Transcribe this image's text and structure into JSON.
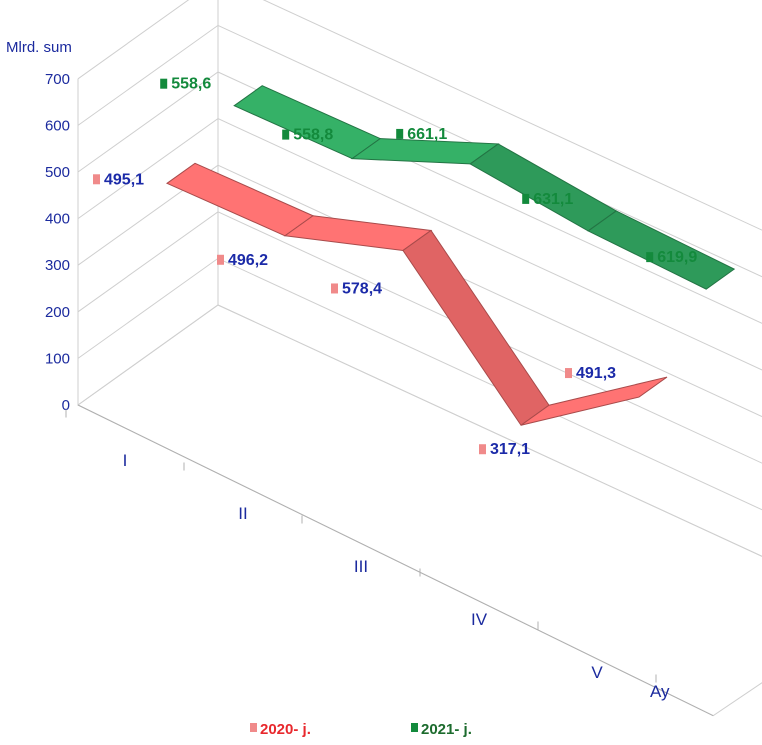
{
  "chart_data": {
    "type": "line",
    "style": "3d-ribbon",
    "ylabel": "Mlrd. sum",
    "xlabel": "Ay",
    "ylim": [
      0,
      700
    ],
    "yticks": [
      "0",
      "100",
      "200",
      "300",
      "400",
      "500",
      "600",
      "700"
    ],
    "categories": [
      "I",
      "II",
      "III",
      "IV",
      "V"
    ],
    "grid": true,
    "legend_position": "bottom",
    "series": [
      {
        "name": "2020- j.",
        "values": [
          495.1,
          496.2,
          578.4,
          317.1,
          491.3
        ],
        "labels": [
          "495,1",
          "496,2",
          "578,4",
          "317,1",
          "491,3"
        ],
        "color": "#e06464",
        "marker_color": "#f08a8a",
        "label_color": "#1b2aa8",
        "legend_color": "#e8282d"
      },
      {
        "name": "2021- j.",
        "values": [
          558.6,
          558.8,
          661.1,
          631.1,
          619.9
        ],
        "labels": [
          "558,6",
          "558,8",
          "661,1",
          "631,1",
          "619,9"
        ],
        "color": "#2e9a5a",
        "marker_color": "#138a3c",
        "label_color": "#138a3c",
        "legend_color": "#1c6b2d"
      }
    ]
  }
}
